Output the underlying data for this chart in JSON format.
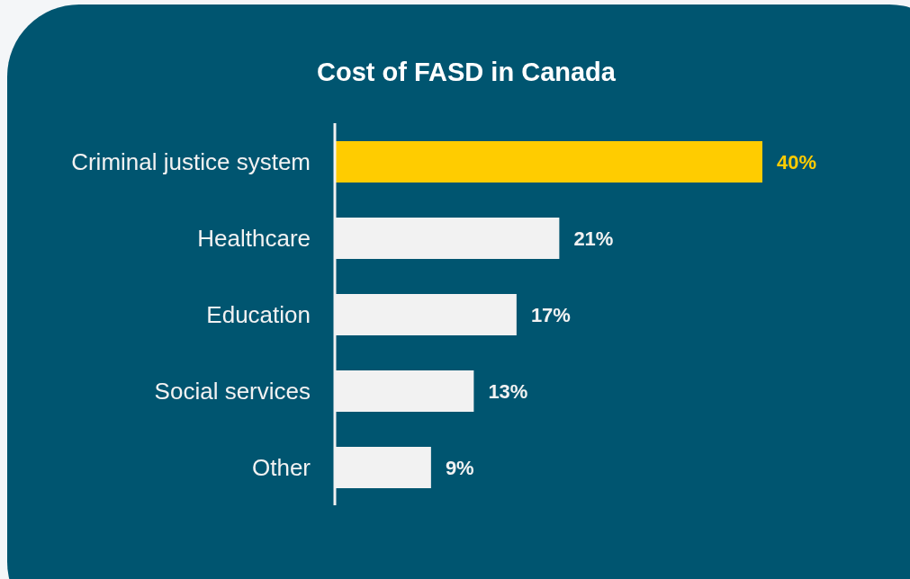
{
  "chart_data": {
    "type": "bar",
    "orientation": "horizontal",
    "title": "Cost of FASD in Canada",
    "categories": [
      "Criminal justice system",
      "Healthcare",
      "Education",
      "Social services",
      "Other"
    ],
    "values": [
      40,
      21,
      17,
      13,
      9
    ],
    "colors": [
      "#ffcc00",
      "#f2f2f2",
      "#f2f2f2",
      "#f2f2f2",
      "#f2f2f2"
    ],
    "value_labels": [
      "40%",
      "21%",
      "17%",
      "13%",
      "9%"
    ]
  }
}
